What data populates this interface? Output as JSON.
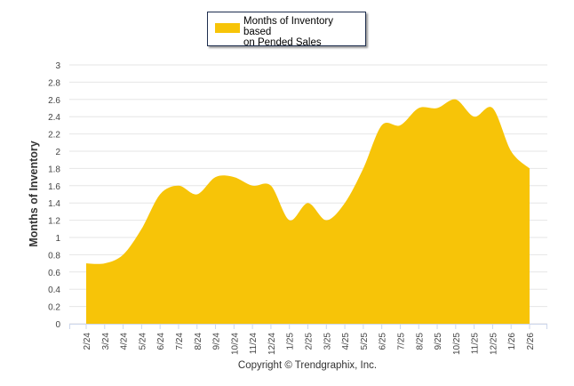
{
  "chart_data": {
    "type": "area",
    "title": "",
    "xlabel": "",
    "ylabel": "Months of Inventory",
    "ylim": [
      0,
      3
    ],
    "yticks": [
      "0",
      "0.2",
      "0.4",
      "0.6",
      "0.8",
      "1",
      "1.2",
      "1.4",
      "1.6",
      "1.8",
      "2",
      "2.2",
      "2.4",
      "2.6",
      "2.8",
      "3"
    ],
    "categories": [
      "2/24",
      "3/24",
      "4/24",
      "5/24",
      "6/24",
      "7/24",
      "8/24",
      "9/24",
      "10/24",
      "11/24",
      "12/24",
      "1/25",
      "2/25",
      "3/25",
      "4/25",
      "5/25",
      "6/25",
      "7/25",
      "8/25",
      "9/25",
      "10/25",
      "11/25",
      "12/25",
      "1/26",
      "2/26"
    ],
    "series": [
      {
        "name": "Months of Inventory based on Pended Sales",
        "color": "#f7c408",
        "values": [
          0.7,
          0.7,
          0.8,
          1.1,
          1.5,
          1.6,
          1.5,
          1.7,
          1.7,
          1.6,
          1.6,
          1.2,
          1.4,
          1.2,
          1.4,
          1.8,
          2.3,
          2.3,
          2.5,
          2.5,
          2.6,
          2.4,
          2.5,
          2.0,
          1.8
        ]
      }
    ],
    "grid": true,
    "legend_placement": "top-center"
  },
  "legend": {
    "line1": "Months of Inventory based",
    "line2": "on Pended Sales"
  },
  "credit": "Copyright © Trendgraphix, Inc."
}
